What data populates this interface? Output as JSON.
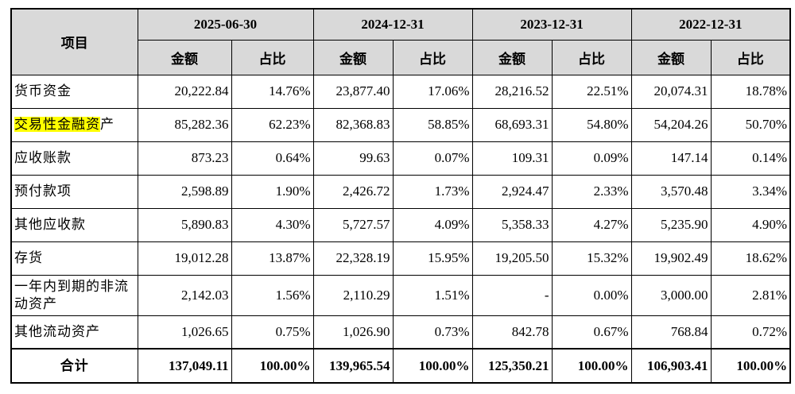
{
  "table": {
    "item_header": "项目",
    "periods": [
      "2025-06-30",
      "2024-12-31",
      "2023-12-31",
      "2022-12-31"
    ],
    "sub_headers": [
      "金额",
      "占比"
    ],
    "rows": [
      {
        "label": "货币资金",
        "cells": [
          "20,222.84",
          "14.76%",
          "23,877.40",
          "17.06%",
          "28,216.52",
          "22.51%",
          "20,074.31",
          "18.78%"
        ]
      },
      {
        "label_highlight": "交易性金融资",
        "label_rest": "产",
        "cells": [
          "85,282.36",
          "62.23%",
          "82,368.83",
          "58.85%",
          "68,693.31",
          "54.80%",
          "54,204.26",
          "50.70%"
        ]
      },
      {
        "label": "应收账款",
        "cells": [
          "873.23",
          "0.64%",
          "99.63",
          "0.07%",
          "109.31",
          "0.09%",
          "147.14",
          "0.14%"
        ]
      },
      {
        "label": "预付款项",
        "cells": [
          "2,598.89",
          "1.90%",
          "2,426.72",
          "1.73%",
          "2,924.47",
          "2.33%",
          "3,570.48",
          "3.34%"
        ]
      },
      {
        "label": "其他应收款",
        "cells": [
          "5,890.83",
          "4.30%",
          "5,727.57",
          "4.09%",
          "5,358.33",
          "4.27%",
          "5,235.90",
          "4.90%"
        ]
      },
      {
        "label": "存货",
        "cells": [
          "19,012.28",
          "13.87%",
          "22,328.19",
          "15.95%",
          "19,205.50",
          "15.32%",
          "19,902.49",
          "18.62%"
        ]
      },
      {
        "label": "一年内到期的非流动资产",
        "cells": [
          "2,142.03",
          "1.56%",
          "2,110.29",
          "1.51%",
          "-",
          "0.00%",
          "3,000.00",
          "2.81%"
        ]
      },
      {
        "label": "其他流动资产",
        "cells": [
          "1,026.65",
          "0.75%",
          "1,026.90",
          "0.73%",
          "842.78",
          "0.67%",
          "768.84",
          "0.72%"
        ]
      }
    ],
    "total": {
      "label": "合计",
      "cells": [
        "137,049.11",
        "100.00%",
        "139,965.54",
        "100.00%",
        "125,350.21",
        "100.00%",
        "106,903.41",
        "100.00%"
      ]
    }
  }
}
